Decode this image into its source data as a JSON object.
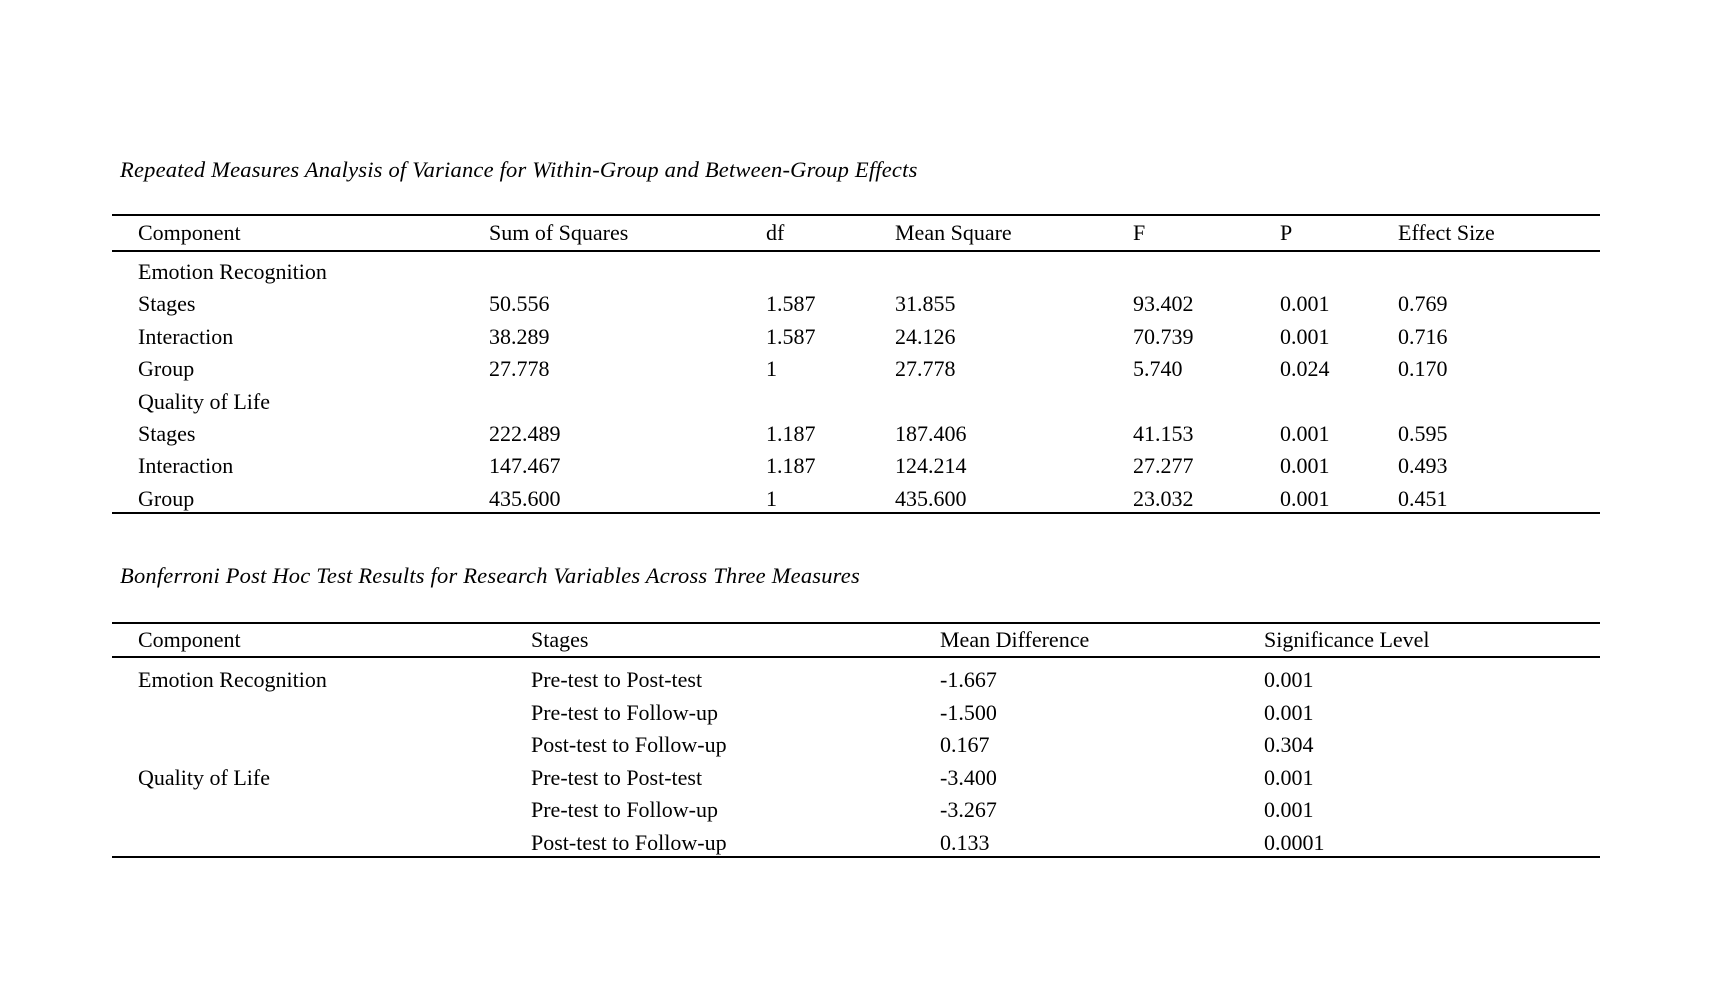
{
  "page": {
    "background": "#ffffff",
    "text_color": "#000000",
    "rule_color": "#000000"
  },
  "tables": [
    {
      "title": "Repeated Measures Analysis of Variance for Within-Group and Between-Group Effects",
      "columns": [
        "Component",
        "Sum of Squares",
        "df",
        "Mean Square",
        "F",
        "P",
        "Effect Size"
      ],
      "rows": [
        {
          "type": "section",
          "cells": [
            "Emotion Recognition",
            "",
            "",
            "",
            "",
            "",
            ""
          ]
        },
        {
          "type": "data",
          "cells": [
            "Stages",
            "50.556",
            "1.587",
            "31.855",
            "93.402",
            "0.001",
            "0.769"
          ]
        },
        {
          "type": "data",
          "cells": [
            "Interaction",
            "38.289",
            "1.587",
            "24.126",
            "70.739",
            "0.001",
            "0.716"
          ]
        },
        {
          "type": "data",
          "cells": [
            "Group",
            "27.778",
            "1",
            "27.778",
            "5.740",
            "0.024",
            "0.170"
          ]
        },
        {
          "type": "section",
          "cells": [
            "Quality of Life",
            "",
            "",
            "",
            "",
            "",
            ""
          ]
        },
        {
          "type": "data",
          "cells": [
            "Stages",
            "222.489",
            "1.187",
            "187.406",
            "41.153",
            "0.001",
            "0.595"
          ]
        },
        {
          "type": "data",
          "cells": [
            "Interaction",
            "147.467",
            "1.187",
            "124.214",
            "27.277",
            "0.001",
            "0.493"
          ]
        },
        {
          "type": "data",
          "cells": [
            "Group",
            "435.600",
            "1",
            "435.600",
            "23.032",
            "0.001",
            "0.451"
          ]
        }
      ]
    },
    {
      "title": "Bonferroni Post Hoc Test Results for Research Variables Across Three Measures",
      "columns": [
        "Component",
        "Stages",
        "Mean Difference",
        "Significance Level"
      ],
      "rows": [
        {
          "type": "data",
          "cells": [
            "Emotion Recognition",
            "Pre-test to Post-test",
            "-1.667",
            "0.001"
          ]
        },
        {
          "type": "data",
          "cells": [
            "",
            "Pre-test to Follow-up",
            "-1.500",
            "0.001"
          ]
        },
        {
          "type": "data",
          "cells": [
            "",
            "Post-test to Follow-up",
            "0.167",
            "0.304"
          ]
        },
        {
          "type": "data",
          "cells": [
            "Quality of Life",
            "Pre-test to Post-test",
            "-3.400",
            "0.001"
          ]
        },
        {
          "type": "data",
          "cells": [
            "",
            "Pre-test to Follow-up",
            "-3.267",
            "0.001"
          ]
        },
        {
          "type": "data",
          "cells": [
            "",
            "Post-test to Follow-up",
            "0.133",
            "0.0001"
          ]
        }
      ]
    }
  ]
}
